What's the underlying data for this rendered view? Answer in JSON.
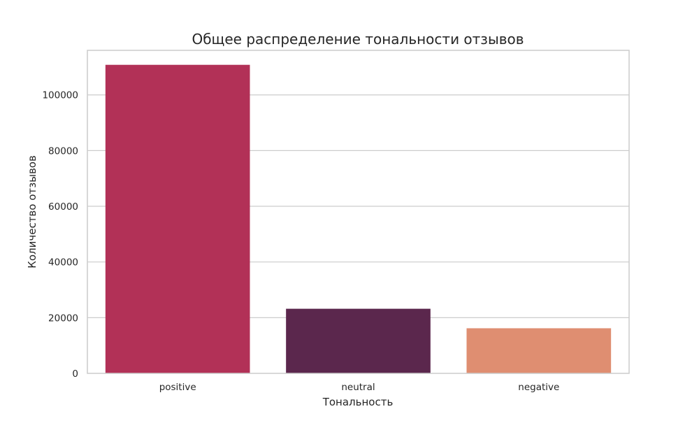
{
  "chart_data": {
    "type": "bar",
    "title": "Общее распределение тональности отзывов",
    "xlabel": "Тональность",
    "ylabel": "Количество отзывов",
    "categories": [
      "positive",
      "neutral",
      "negative"
    ],
    "values": [
      110800,
      23200,
      16200
    ],
    "colors": [
      "#b23157",
      "#5b274d",
      "#df8e71"
    ],
    "ylim": [
      0,
      116000
    ],
    "yticks": [
      0,
      20000,
      40000,
      60000,
      80000,
      100000
    ],
    "grid": true,
    "legend": false
  }
}
